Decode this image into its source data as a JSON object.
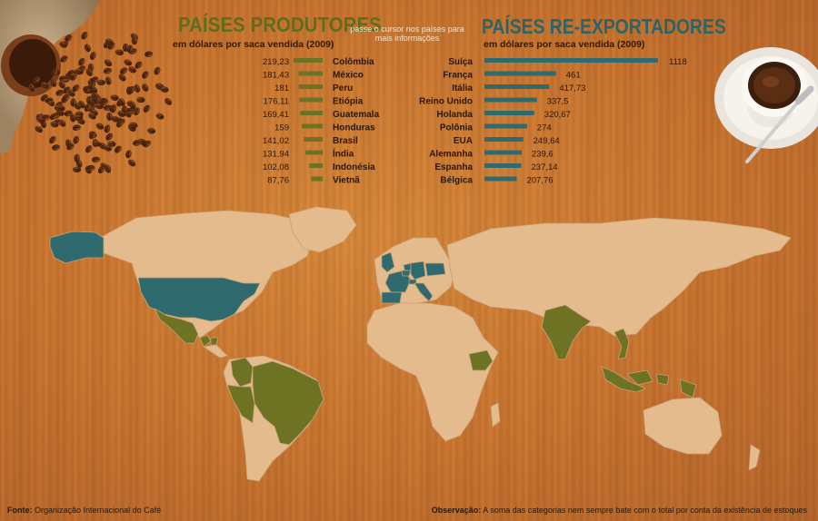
{
  "colors": {
    "producer": "#6e7324",
    "reexporter": "#2f6b6e",
    "land": "#e3bb8c",
    "label_dark": "#2a1606",
    "title_producer": "#5f6e1c",
    "title_reexporter": "#2d6468"
  },
  "header": {
    "producer_title": "PAÍSES PRODUTORES",
    "producer_subtitle": "em dólares por saca vendida (2009)",
    "hint": "passe o cursor nos países para mais informações",
    "reexporter_title": "PAÍSES RE-EXPORTADORES",
    "reexporter_subtitle": "em dólares por saca vendida (2009)"
  },
  "chart_data": [
    {
      "type": "bar",
      "orientation": "horizontal",
      "title": "PAÍSES PRODUTORES",
      "subtitle": "em dólares por saca vendida (2009)",
      "categories": [
        "Colômbia",
        "México",
        "Peru",
        "Etiópia",
        "Guatemala",
        "Honduras",
        "Brasil",
        "Índia",
        "Indonésia",
        "Vietnã"
      ],
      "values": [
        219.23,
        181.43,
        181,
        176.11,
        169.41,
        159,
        141.02,
        131.94,
        102.08,
        87.76
      ],
      "value_labels": [
        "219,23",
        "181,43",
        "181",
        "176,11",
        "169,41",
        "159",
        "141,02",
        "131,94",
        "102,08",
        "87,76"
      ],
      "bar_color": "#6e7324"
    },
    {
      "type": "bar",
      "orientation": "horizontal",
      "title": "PAÍSES RE-EXPORTADORES",
      "subtitle": "em dólares por saca vendida (2009)",
      "categories": [
        "Suíça",
        "França",
        "Itália",
        "Reino Unido",
        "Holanda",
        "Polônia",
        "EUA",
        "Alemanha",
        "Espanha",
        "Bélgica"
      ],
      "values": [
        1118,
        461,
        417.73,
        337.5,
        320.67,
        274,
        249.64,
        239.6,
        237.14,
        207.76
      ],
      "value_labels": [
        "1118",
        "461",
        "417,73",
        "337,5",
        "320,67",
        "274",
        "249,64",
        "239,6",
        "237,14",
        "207,76"
      ],
      "bar_color": "#2f6b6e"
    }
  ],
  "footer": {
    "source_label": "Fonte:",
    "source_text": "Organização Internacional do Café",
    "note_label": "Observação:",
    "note_text": "A soma das categorias nem sempre bate com o total por conta da existência de estoques"
  }
}
